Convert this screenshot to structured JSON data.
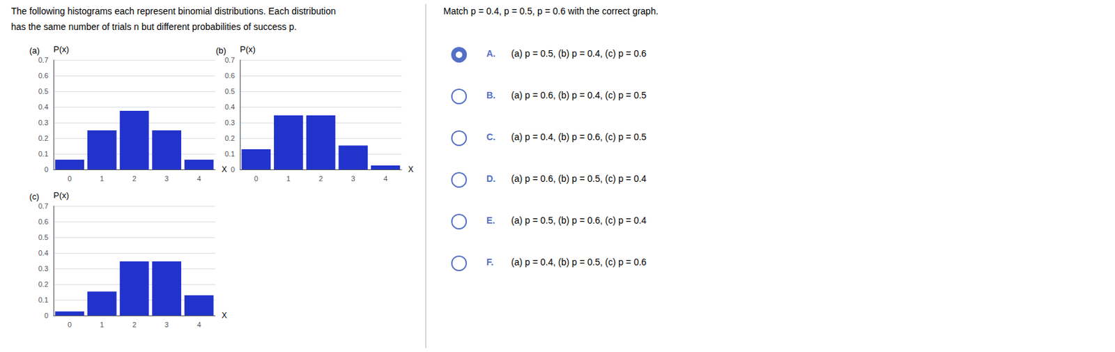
{
  "chart_data": [
    {
      "type": "bar",
      "title": "(a)",
      "xlabel": "X",
      "ylabel": "P(x)",
      "categories": [
        0,
        1,
        2,
        3,
        4
      ],
      "values": [
        0.0625,
        0.25,
        0.375,
        0.25,
        0.0625
      ],
      "color": "#2233cc",
      "ylim": [
        0,
        0.7
      ],
      "yticks": [
        0,
        0.1,
        0.2,
        0.3,
        0.4,
        0.5,
        0.6,
        0.7
      ],
      "grid": true
    },
    {
      "type": "bar",
      "title": "(b)",
      "xlabel": "X",
      "ylabel": "P(x)",
      "categories": [
        0,
        1,
        2,
        3,
        4
      ],
      "values": [
        0.1296,
        0.3456,
        0.3456,
        0.1536,
        0.0256
      ],
      "color": "#2233cc",
      "ylim": [
        0,
        0.7
      ],
      "yticks": [
        0,
        0.1,
        0.2,
        0.3,
        0.4,
        0.5,
        0.6,
        0.7
      ],
      "grid": true
    },
    {
      "type": "bar",
      "title": "(c)",
      "xlabel": "X",
      "ylabel": "P(x)",
      "categories": [
        0,
        1,
        2,
        3,
        4
      ],
      "values": [
        0.0256,
        0.1536,
        0.3456,
        0.3456,
        0.1296
      ],
      "color": "#2233cc",
      "ylim": [
        0,
        0.7
      ],
      "yticks": [
        0,
        0.1,
        0.2,
        0.3,
        0.4,
        0.5,
        0.6,
        0.7
      ],
      "grid": true
    }
  ],
  "annotations": [
    "The following histograms each represent binomial distributions. Each distribution",
    "has the same number of trials n but different probabilities of success p."
  ],
  "question": {
    "text": "Match p = 0.4, p = 0.5, p = 0.6 with the correct graph.",
    "options": [
      {
        "letter": "A.",
        "text": "(a) p = 0.5, (b) p = 0.4, (c) p = 0.6",
        "selected": true
      },
      {
        "letter": "B.",
        "text": "(a) p = 0.6, (b) p = 0.4, (c) p = 0.5",
        "selected": false
      },
      {
        "letter": "C.",
        "text": "(a) p = 0.4, (b) p = 0.6, (c) p = 0.5",
        "selected": false
      },
      {
        "letter": "D.",
        "text": "(a) p = 0.6, (b) p = 0.5, (c) p = 0.4",
        "selected": false
      },
      {
        "letter": "E.",
        "text": "(a) p = 0.5, (b) p = 0.6, (c) p = 0.4",
        "selected": false
      },
      {
        "letter": "F.",
        "text": "(a) p = 0.4, (b) p = 0.5, (c) p = 0.6",
        "selected": false
      }
    ]
  }
}
